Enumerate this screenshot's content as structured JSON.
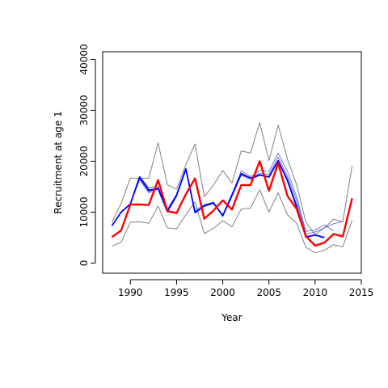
{
  "chart_data": {
    "type": "line",
    "title": "",
    "xlabel": "Year",
    "ylabel": "Recruitment at age 1",
    "xlim": [
      1987,
      2015
    ],
    "ylim": [
      -2000,
      41500
    ],
    "x_ticks": [
      1990,
      1995,
      2000,
      2005,
      2010,
      2015
    ],
    "y_ticks": [
      0,
      10000,
      20000,
      30000,
      40000
    ],
    "grid": false,
    "legend": "none",
    "series": [
      {
        "role": "band-lower",
        "color": "#808080",
        "x": [
          1988,
          1989,
          1990,
          1991,
          1992,
          1993,
          1994,
          1995,
          1996,
          1997,
          1998,
          1999,
          2000,
          2001,
          2002,
          2003,
          2004,
          2005,
          2006,
          2007,
          2008,
          2009,
          2010,
          2011,
          2012,
          2013,
          2014
        ],
        "y": [
          3300,
          4100,
          8000,
          8100,
          7800,
          11200,
          6900,
          6700,
          9500,
          12000,
          5800,
          6800,
          8300,
          7100,
          10600,
          10800,
          14400,
          10000,
          13800,
          9500,
          7800,
          3100,
          2000,
          2500,
          3600,
          3200,
          8400
        ]
      },
      {
        "role": "band-upper",
        "color": "#808080",
        "x": [
          1988,
          1989,
          1990,
          1991,
          1992,
          1993,
          1994,
          1995,
          1996,
          1997,
          1998,
          1999,
          2000,
          2001,
          2002,
          2003,
          2004,
          2005,
          2006,
          2007,
          2008,
          2009,
          2010,
          2011,
          2012,
          2013,
          2014
        ],
        "y": [
          8000,
          11700,
          16700,
          16600,
          16700,
          23600,
          15400,
          14500,
          19300,
          23400,
          13000,
          15300,
          18200,
          15700,
          22000,
          21600,
          27600,
          20100,
          27100,
          20400,
          15400,
          8000,
          5600,
          6900,
          8600,
          8100,
          19100
        ]
      },
      {
        "role": "blue-variant",
        "color": "#4a5bd6",
        "x": [
          1988,
          1989,
          1990,
          1991,
          1992,
          1993,
          1994,
          1995,
          1996,
          1997,
          1998,
          1999,
          2000,
          2001,
          2002,
          2003,
          2004,
          2005,
          2006,
          2007,
          2008,
          2009,
          2010,
          2011,
          2012
        ],
        "y": [
          7300,
          10000,
          11600,
          17000,
          14800,
          15000,
          10600,
          13500,
          18500,
          10000,
          11300,
          12000,
          9400,
          13500,
          18100,
          17000,
          18100,
          18000,
          21600,
          18000,
          13000,
          6200,
          6500,
          7500,
          6300
        ]
      },
      {
        "role": "blue-variant",
        "color": "#4a5bd6",
        "x": [
          1988,
          1989,
          1990,
          1991,
          1992,
          1993,
          1994,
          1995,
          1996,
          1997,
          1998,
          1999,
          2000,
          2001,
          2002,
          2003,
          2004,
          2005,
          2006,
          2007,
          2008,
          2009,
          2010,
          2011,
          2012,
          2013
        ],
        "y": [
          7300,
          10000,
          11600,
          16600,
          14000,
          14800,
          10200,
          13200,
          18400,
          10100,
          11100,
          11700,
          9300,
          13300,
          17700,
          16700,
          17600,
          17400,
          20800,
          17000,
          12300,
          5700,
          6100,
          6900,
          7700,
          8200
        ]
      },
      {
        "role": "blue-variant",
        "color": "#4a5bd6",
        "x": [
          1988,
          1989,
          1990,
          1991,
          1992,
          1993,
          1994,
          1995,
          1996,
          1997,
          1998,
          1999,
          2000,
          2001,
          2002,
          2003,
          2004,
          2005,
          2006,
          2007,
          2008,
          2009,
          2010,
          2011
        ],
        "y": [
          7300,
          10000,
          11600,
          16300,
          13800,
          14500,
          10000,
          13000,
          18200,
          10300,
          11500,
          11900,
          9100,
          13000,
          17300,
          16400,
          17200,
          17000,
          20200,
          16500,
          11500,
          5300,
          5500,
          4900
        ]
      },
      {
        "role": "blue-main",
        "color": "#0000ff",
        "x": [
          1988,
          1989,
          1990,
          1991,
          1992,
          1993,
          1994,
          1995,
          1996,
          1997,
          1998,
          1999,
          2000,
          2001,
          2002,
          2003,
          2004,
          2005,
          2006,
          2007,
          2008,
          2009,
          2010,
          2011
        ],
        "y": [
          7300,
          10000,
          11600,
          16900,
          14300,
          14600,
          10100,
          13300,
          18500,
          9900,
          11200,
          11800,
          9300,
          13400,
          17500,
          16700,
          17300,
          16900,
          20100,
          16200,
          11000,
          5100,
          5500,
          5000
        ]
      },
      {
        "role": "red-main",
        "color": "#ff0000",
        "x": [
          1988,
          1989,
          1990,
          1991,
          1992,
          1993,
          1994,
          1995,
          1996,
          1997,
          1998,
          1999,
          2000,
          2001,
          2002,
          2003,
          2004,
          2005,
          2006,
          2007,
          2008,
          2009,
          2010,
          2011,
          2012,
          2013,
          2014
        ],
        "y": [
          5100,
          6400,
          11500,
          11500,
          11400,
          16300,
          10200,
          9800,
          13500,
          16600,
          8700,
          10300,
          12300,
          10500,
          15300,
          15300,
          20000,
          14200,
          19600,
          13200,
          10600,
          5300,
          3400,
          4000,
          5700,
          5200,
          12700
        ]
      }
    ]
  }
}
